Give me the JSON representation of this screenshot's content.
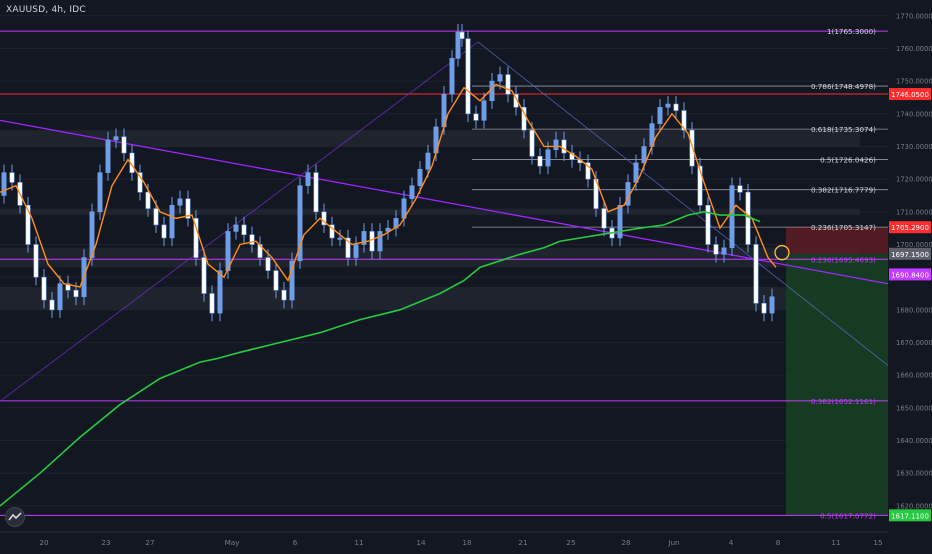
{
  "header": {
    "symbol": "XAUUSD, 4h, IDC"
  },
  "colors": {
    "background": "#131722",
    "candle": "#6f9de6",
    "ema_fast": "#ff8c1a",
    "ma_slow": "#27c93f",
    "level_line": "#c33cff",
    "red_line": "#ff2e2e",
    "fib_line": "#9598a1",
    "stop_zone": "#5a1b23",
    "target_zone": "#173f22"
  },
  "chart_data": {
    "type": "candlestick",
    "symbol": "XAUUSD",
    "timeframe": "4h",
    "source": "IDC",
    "ylim": [
      1612,
      1773
    ],
    "x_ticks": [
      "20",
      "23",
      "27",
      "May",
      "6",
      "11",
      "14",
      "18",
      "21",
      "25",
      "28",
      "Jun",
      "4",
      "8",
      "11",
      "15"
    ],
    "y_ticks": [
      1620,
      1630,
      1640,
      1650,
      1660,
      1670,
      1680,
      1690,
      1700,
      1710,
      1720,
      1730,
      1740,
      1750,
      1760,
      1770
    ],
    "close_path": [
      [
        0,
        1715
      ],
      [
        2,
        1722
      ],
      [
        4,
        1719
      ],
      [
        6,
        1712
      ],
      [
        8,
        1700
      ],
      [
        10,
        1690
      ],
      [
        12,
        1683
      ],
      [
        14,
        1680
      ],
      [
        16,
        1688
      ],
      [
        18,
        1686
      ],
      [
        20,
        1684
      ],
      [
        22,
        1696
      ],
      [
        24,
        1710
      ],
      [
        26,
        1722
      ],
      [
        28,
        1732
      ],
      [
        30,
        1733
      ],
      [
        32,
        1728
      ],
      [
        34,
        1722
      ],
      [
        36,
        1716
      ],
      [
        38,
        1711
      ],
      [
        40,
        1706
      ],
      [
        42,
        1702
      ],
      [
        44,
        1712
      ],
      [
        46,
        1714
      ],
      [
        48,
        1708
      ],
      [
        50,
        1696
      ],
      [
        52,
        1685
      ],
      [
        54,
        1679
      ],
      [
        56,
        1692
      ],
      [
        58,
        1704
      ],
      [
        60,
        1706
      ],
      [
        62,
        1703
      ],
      [
        64,
        1700
      ],
      [
        66,
        1696
      ],
      [
        68,
        1692
      ],
      [
        70,
        1686
      ],
      [
        72,
        1683
      ],
      [
        74,
        1695
      ],
      [
        76,
        1718
      ],
      [
        78,
        1722
      ],
      [
        80,
        1710
      ],
      [
        82,
        1706
      ],
      [
        84,
        1702
      ],
      [
        86,
        1702
      ],
      [
        88,
        1696
      ],
      [
        90,
        1700
      ],
      [
        92,
        1704
      ],
      [
        94,
        1698
      ],
      [
        96,
        1704
      ],
      [
        98,
        1705
      ],
      [
        100,
        1708
      ],
      [
        102,
        1714
      ],
      [
        104,
        1718
      ],
      [
        106,
        1723
      ],
      [
        108,
        1728
      ],
      [
        110,
        1736
      ],
      [
        112,
        1746
      ],
      [
        114,
        1757
      ],
      [
        115,
        1765
      ],
      [
        116,
        1763
      ],
      [
        118,
        1740
      ],
      [
        120,
        1738
      ],
      [
        122,
        1744
      ],
      [
        124,
        1750
      ],
      [
        126,
        1752
      ],
      [
        128,
        1746
      ],
      [
        130,
        1742
      ],
      [
        132,
        1735
      ],
      [
        134,
        1727
      ],
      [
        136,
        1724
      ],
      [
        138,
        1729
      ],
      [
        140,
        1732
      ],
      [
        142,
        1728
      ],
      [
        144,
        1726
      ],
      [
        146,
        1725
      ],
      [
        148,
        1720
      ],
      [
        150,
        1711
      ],
      [
        152,
        1705
      ],
      [
        154,
        1702
      ],
      [
        156,
        1712
      ],
      [
        158,
        1719
      ],
      [
        160,
        1725
      ],
      [
        162,
        1730
      ],
      [
        164,
        1737
      ],
      [
        166,
        1742
      ],
      [
        168,
        1743
      ],
      [
        170,
        1741
      ],
      [
        172,
        1735
      ],
      [
        174,
        1724
      ],
      [
        176,
        1712
      ],
      [
        178,
        1700
      ],
      [
        180,
        1697
      ],
      [
        182,
        1699
      ],
      [
        184,
        1718
      ],
      [
        186,
        1716
      ],
      [
        188,
        1700
      ],
      [
        190,
        1682
      ],
      [
        192,
        1679
      ],
      [
        194,
        1684
      ]
    ],
    "ema_path": [
      [
        0,
        1716
      ],
      [
        4,
        1718
      ],
      [
        8,
        1708
      ],
      [
        12,
        1694
      ],
      [
        16,
        1688
      ],
      [
        20,
        1687
      ],
      [
        24,
        1700
      ],
      [
        28,
        1718
      ],
      [
        32,
        1726
      ],
      [
        36,
        1719
      ],
      [
        40,
        1710
      ],
      [
        44,
        1708
      ],
      [
        48,
        1709
      ],
      [
        52,
        1694
      ],
      [
        56,
        1690
      ],
      [
        60,
        1700
      ],
      [
        64,
        1701
      ],
      [
        68,
        1696
      ],
      [
        72,
        1689
      ],
      [
        76,
        1703
      ],
      [
        80,
        1708
      ],
      [
        84,
        1704
      ],
      [
        88,
        1700
      ],
      [
        92,
        1701
      ],
      [
        96,
        1703
      ],
      [
        100,
        1706
      ],
      [
        104,
        1714
      ],
      [
        108,
        1724
      ],
      [
        112,
        1740
      ],
      [
        116,
        1748
      ],
      [
        120,
        1744
      ],
      [
        124,
        1749
      ],
      [
        128,
        1747
      ],
      [
        132,
        1738
      ],
      [
        136,
        1730
      ],
      [
        140,
        1730
      ],
      [
        144,
        1727
      ],
      [
        148,
        1723
      ],
      [
        152,
        1710
      ],
      [
        156,
        1712
      ],
      [
        160,
        1721
      ],
      [
        164,
        1733
      ],
      [
        168,
        1740
      ],
      [
        172,
        1734
      ],
      [
        176,
        1719
      ],
      [
        180,
        1705
      ],
      [
        184,
        1712
      ],
      [
        188,
        1708
      ],
      [
        192,
        1696
      ],
      [
        194,
        1693
      ]
    ],
    "ma_path": [
      [
        0,
        1620
      ],
      [
        10,
        1630
      ],
      [
        20,
        1641
      ],
      [
        30,
        1651
      ],
      [
        40,
        1659
      ],
      [
        50,
        1664
      ],
      [
        54,
        1665
      ],
      [
        60,
        1667
      ],
      [
        70,
        1670
      ],
      [
        80,
        1673
      ],
      [
        90,
        1677
      ],
      [
        100,
        1680
      ],
      [
        110,
        1685
      ],
      [
        116,
        1689
      ],
      [
        120,
        1693
      ],
      [
        130,
        1697
      ],
      [
        136,
        1699
      ],
      [
        140,
        1701
      ],
      [
        150,
        1703
      ],
      [
        160,
        1705
      ],
      [
        166,
        1706
      ],
      [
        172,
        1709
      ],
      [
        176,
        1710
      ],
      [
        180,
        1709
      ],
      [
        186,
        1709
      ],
      [
        190,
        1707
      ]
    ],
    "horizontal_levels": [
      {
        "price": 1746.05,
        "label": "1746.0500",
        "color": "#ff2e2e"
      },
      {
        "price": 1705.29,
        "label": "1705.2900",
        "color": "#ff2e2e"
      },
      {
        "price": 1697.15,
        "label": "1697.1500",
        "color": "#5d606b"
      },
      {
        "price": 1690.84,
        "label": "1690.8400",
        "color": "#c33cff"
      },
      {
        "price": 1617.11,
        "label": "1617.1100",
        "color": "#27c93f"
      }
    ],
    "fib_labels": [
      {
        "text": "1(1765.3000)",
        "price": 1765.3
      },
      {
        "text": "0.786(1748.4978)",
        "price": 1748.4978
      },
      {
        "text": "0.618(1735.3074)",
        "price": 1735.3074
      },
      {
        "text": "0.5(1726.0426)",
        "price": 1726.0426
      },
      {
        "text": "0.382(1716.7779)",
        "price": 1716.7779
      },
      {
        "text": "0.236(1705.3147)",
        "price": 1705.3147
      },
      {
        "text": "0.236(1695.4693)",
        "price": 1695.4693,
        "accent": true
      },
      {
        "text": "0.382(1652.1161)",
        "price": 1652.1161,
        "accent": true
      },
      {
        "text": "0.5(1617.0772)",
        "price": 1617.0772,
        "accent": true
      }
    ]
  }
}
